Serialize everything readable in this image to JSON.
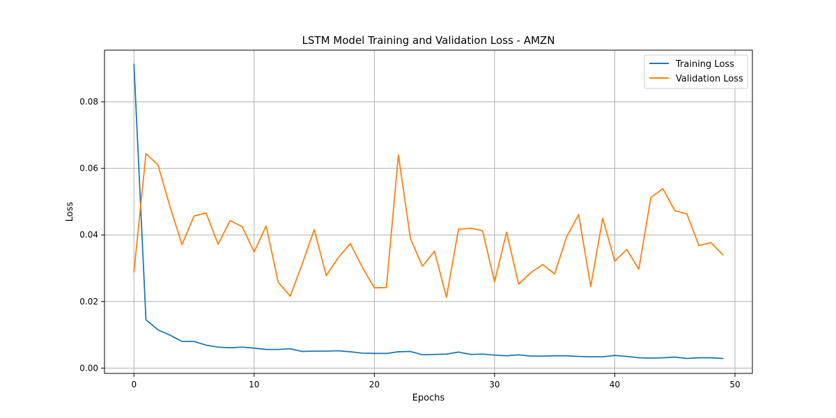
{
  "chart_data": {
    "type": "line",
    "title": "LSTM Model Training and Validation Loss - AMZN",
    "xlabel": "Epochs",
    "ylabel": "Loss",
    "xlim": [
      -2.45,
      51.45
    ],
    "ylim": [
      -0.0016,
      0.0955
    ],
    "x_ticks": [
      0,
      10,
      20,
      30,
      40,
      50
    ],
    "x_tick_labels": [
      "0",
      "10",
      "20",
      "30",
      "40",
      "50"
    ],
    "y_ticks": [
      0.0,
      0.02,
      0.04,
      0.06,
      0.08
    ],
    "y_tick_labels": [
      "0.00",
      "0.02",
      "0.04",
      "0.06",
      "0.08"
    ],
    "grid": true,
    "legend_position": "top-right",
    "x": [
      0,
      1,
      2,
      3,
      4,
      5,
      6,
      7,
      8,
      9,
      10,
      11,
      12,
      13,
      14,
      15,
      16,
      17,
      18,
      19,
      20,
      21,
      22,
      23,
      24,
      25,
      26,
      27,
      28,
      29,
      30,
      31,
      32,
      33,
      34,
      35,
      36,
      37,
      38,
      39,
      40,
      41,
      42,
      43,
      44,
      45,
      46,
      47,
      48,
      49
    ],
    "series": [
      {
        "name": "Training Loss",
        "color": "#1f77b4",
        "values": [
          0.0913,
          0.0145,
          0.0115,
          0.0099,
          0.008,
          0.008,
          0.0069,
          0.0063,
          0.0061,
          0.0063,
          0.006,
          0.0056,
          0.0056,
          0.0058,
          0.005,
          0.0051,
          0.0051,
          0.0052,
          0.0049,
          0.0045,
          0.0044,
          0.0044,
          0.0049,
          0.005,
          0.004,
          0.0041,
          0.0042,
          0.0048,
          0.0041,
          0.0042,
          0.0039,
          0.0037,
          0.004,
          0.0036,
          0.0036,
          0.0037,
          0.0037,
          0.0035,
          0.0034,
          0.0034,
          0.0038,
          0.0035,
          0.0031,
          0.003,
          0.0031,
          0.0033,
          0.0029,
          0.0031,
          0.0031,
          0.0029
        ]
      },
      {
        "name": "Validation Loss",
        "color": "#ff7f0e",
        "values": [
          0.0289,
          0.0644,
          0.061,
          0.0485,
          0.0371,
          0.0457,
          0.0466,
          0.0372,
          0.0443,
          0.0425,
          0.0349,
          0.0427,
          0.0258,
          0.0216,
          0.0313,
          0.0416,
          0.0278,
          0.0332,
          0.0374,
          0.0303,
          0.0241,
          0.0242,
          0.064,
          0.0389,
          0.0306,
          0.0351,
          0.0213,
          0.0417,
          0.042,
          0.0413,
          0.0259,
          0.0408,
          0.0252,
          0.0286,
          0.0311,
          0.0283,
          0.0395,
          0.0461,
          0.0245,
          0.045,
          0.0321,
          0.0356,
          0.0297,
          0.0512,
          0.0539,
          0.0473,
          0.0463,
          0.0368,
          0.0377,
          0.034
        ]
      }
    ]
  }
}
